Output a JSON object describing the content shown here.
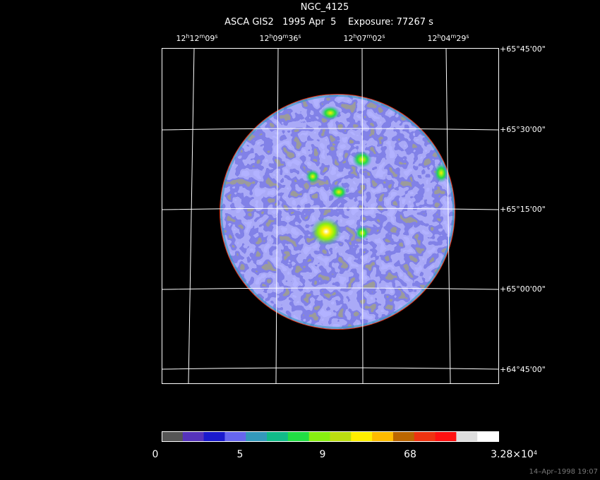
{
  "header": {
    "title": "NGC_4125",
    "subtitle": "ASCA GIS2   1995 Apr  5    Exposure: 77267 s"
  },
  "ra_labels": [
    [
      "12",
      "h",
      "12",
      "m",
      "09",
      "s"
    ],
    [
      "12",
      "h",
      "09",
      "m",
      "36",
      "s"
    ],
    [
      "12",
      "h",
      "07",
      "m",
      "02",
      "s"
    ],
    [
      "12",
      "h",
      "04",
      "m",
      "29",
      "s"
    ]
  ],
  "dec_labels": [
    [
      "+65°45'00\""
    ],
    [
      "+65°30'00\""
    ],
    [
      "+65°15'00\""
    ],
    [
      "+65°00'00\""
    ],
    [
      "+64°45'00\""
    ]
  ],
  "colorbar": {
    "colors": [
      "#555555",
      "#5533bb",
      "#1a1acc",
      "#6666ee",
      "#3399bb",
      "#11bb88",
      "#22dd44",
      "#88ee11",
      "#bbdd11",
      "#ffee00",
      "#ffbb00",
      "#bb6600",
      "#ee3311",
      "#ff1111",
      "#dddddd",
      "#ffffff"
    ],
    "labels": [
      [
        "0"
      ],
      [
        "5"
      ],
      [
        "9"
      ],
      [
        "68"
      ],
      [
        "3.28×10",
        "4"
      ]
    ]
  },
  "footer": "14–Apr–1998 19:07"
}
